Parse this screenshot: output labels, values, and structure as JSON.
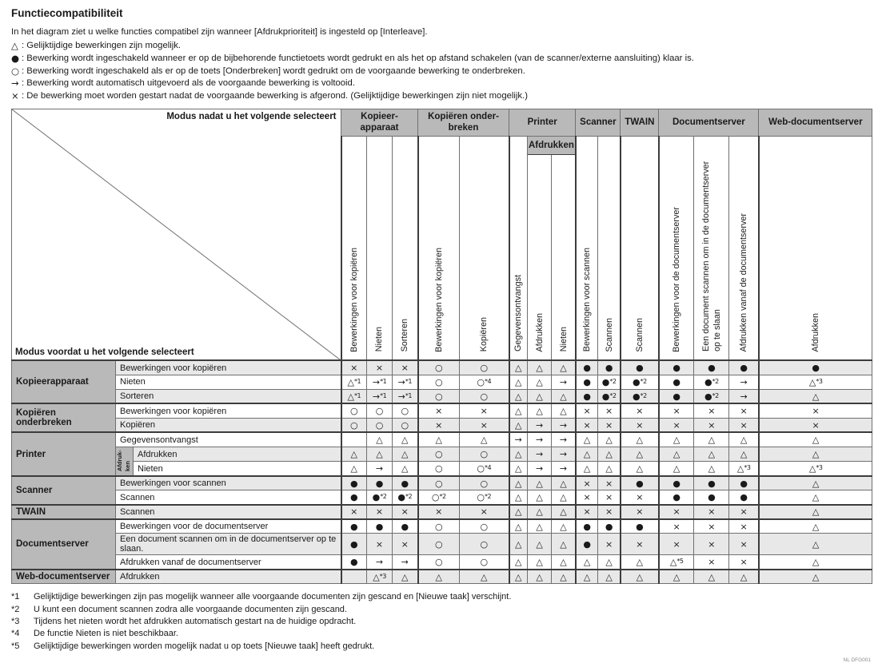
{
  "page_title": "Functiecompatibiliteit",
  "intro": "In het diagram ziet u welke functies compatibel zijn wanneer [Afdrukprioriteit] is ingesteld op [Interleave].",
  "legend": [
    {
      "symbol": "△",
      "text": " : Gelijktijdige bewerkingen zijn mogelijk."
    },
    {
      "symbol": "●",
      "text": " : Bewerking wordt ingeschakeld wanneer er op de bijbehorende functietoets wordt gedrukt en als het op afstand schakelen (van de scanner/externe aansluiting) klaar is."
    },
    {
      "symbol": "○",
      "text": " : Bewerking wordt ingeschakeld als er op de toets [Onderbreken] wordt gedrukt om de voorgaande bewerking te onderbreken."
    },
    {
      "symbol": "→",
      "text": ": Bewerking wordt automatisch uitgevoerd als de voorgaande bewerking is voltooid."
    },
    {
      "symbol": "×",
      "text": " : De bewerking moet worden gestart nadat de voorgaande bewerking is afgerond. (Gelijktijdige bewerkingen zijn niet mogelijk.)"
    }
  ],
  "table": {
    "corner": {
      "top": "Modus nadat u het volgende selecteert",
      "bottom": "Modus voordat u het volgende selecteert"
    },
    "col_groups": [
      {
        "label": "Kopieer-\napparaat",
        "span": 3
      },
      {
        "label": "Kopiëren onder-\nbreken",
        "span": 2
      },
      {
        "label": "Printer",
        "span": 3
      },
      {
        "label": "Scanner",
        "span": 2
      },
      {
        "label": "TWAIN",
        "span": 1
      },
      {
        "label": "Documentserver",
        "span": 3
      },
      {
        "label": "Web-documentserver",
        "span": 1
      }
    ],
    "printer_subheader": "Afdrukken",
    "columns": [
      "Bewerkingen voor kopiëren",
      "Nieten",
      "Sorteren",
      "Bewerkingen voor kopiëren",
      "Kopiëren",
      "Gegevensontvangst",
      "Afdrukken",
      "Nieten",
      "Bewerkingen voor scannen",
      "Scannen",
      "Scannen",
      "Bewerkingen voor de documentserver",
      "Een document scannen om in de documentserver op te slaan",
      "Afdrukken vanaf de documentserver",
      "Afdrukken"
    ],
    "row_groups": [
      {
        "label": "Kopieerapparaat",
        "rows": [
          {
            "label": "Bewerkingen voor kopiëren",
            "cells": [
              "×",
              "×",
              "×",
              "○",
              "○",
              "△",
              "△",
              "△",
              "●",
              "●",
              "●",
              "●",
              "●",
              "●",
              "●"
            ]
          },
          {
            "label": "Nieten",
            "cells": [
              "△*1",
              "→*1",
              "→*1",
              "○",
              "○*4",
              "△",
              "△",
              "→",
              "●",
              "●*2",
              "●*2",
              "●",
              "●*2",
              "→",
              "△*3"
            ]
          },
          {
            "label": "Sorteren",
            "cells": [
              "△*1",
              "→*1",
              "→*1",
              "○",
              "○",
              "△",
              "△",
              "△",
              "●",
              "●*2",
              "●*2",
              "●",
              "●*2",
              "→",
              "△"
            ]
          }
        ]
      },
      {
        "label": "Kopiëren onderbreken",
        "rows": [
          {
            "label": "Bewerkingen voor kopiëren",
            "cells": [
              "○",
              "○",
              "○",
              "×",
              "×",
              "△",
              "△",
              "△",
              "×",
              "×",
              "×",
              "×",
              "×",
              "×",
              "×"
            ]
          },
          {
            "label": "Kopiëren",
            "cells": [
              "○",
              "○",
              "○",
              "×",
              "×",
              "△",
              "→",
              "→",
              "×",
              "×",
              "×",
              "×",
              "×",
              "×",
              "×"
            ]
          }
        ]
      },
      {
        "label": "Printer",
        "rows": [
          {
            "label": "Gegevensontvangst",
            "cells": [
              "",
              "△",
              "△",
              "△",
              "△",
              "→",
              "→",
              "→",
              "△",
              "△",
              "△",
              "△",
              "△",
              "△",
              "△"
            ]
          },
          {
            "label": "Afdrukken",
            "sub_group": "Afdruk-ken",
            "sub_span": 2,
            "cells": [
              "△",
              "△",
              "△",
              "○",
              "○",
              "△",
              "→",
              "→",
              "△",
              "△",
              "△",
              "△",
              "△",
              "△",
              "△"
            ]
          },
          {
            "label": "Nieten",
            "in_sub": true,
            "cells": [
              "△",
              "→",
              "△",
              "○",
              "○*4",
              "△",
              "→",
              "→",
              "△",
              "△",
              "△",
              "△",
              "△",
              "△*3",
              "△*3"
            ]
          }
        ]
      },
      {
        "label": "Scanner",
        "rows": [
          {
            "label": "Bewerkingen voor scannen",
            "cells": [
              "●",
              "●",
              "●",
              "○",
              "○",
              "△",
              "△",
              "△",
              "×",
              "×",
              "●",
              "●",
              "●",
              "●",
              "△"
            ]
          },
          {
            "label": "Scannen",
            "cells": [
              "●",
              "●*2",
              "●*2",
              "○*2",
              "○*2",
              "△",
              "△",
              "△",
              "×",
              "×",
              "×",
              "●",
              "●",
              "●",
              "△"
            ]
          }
        ]
      },
      {
        "label": "TWAIN",
        "rows": [
          {
            "label": "Scannen",
            "cells": [
              "×",
              "×",
              "×",
              "×",
              "×",
              "△",
              "△",
              "△",
              "×",
              "×",
              "×",
              "×",
              "×",
              "×",
              "△"
            ]
          }
        ]
      },
      {
        "label": "Documentserver",
        "rows": [
          {
            "label": "Bewerkingen voor de documentserver",
            "cells": [
              "●",
              "●",
              "●",
              "○",
              "○",
              "△",
              "△",
              "△",
              "●",
              "●",
              "●",
              "×",
              "×",
              "×",
              "△"
            ]
          },
          {
            "label": "Een document scannen om in de documentserver op te slaan.",
            "cells": [
              "●",
              "×",
              "×",
              "○",
              "○",
              "△",
              "△",
              "△",
              "●",
              "×",
              "×",
              "×",
              "×",
              "×",
              "△"
            ]
          },
          {
            "label": "Afdrukken vanaf de documentserver",
            "cells": [
              "●",
              "→",
              "→",
              "○",
              "○",
              "△",
              "△",
              "△",
              "△",
              "△",
              "△",
              "△*5",
              "×",
              "×",
              "△"
            ]
          }
        ]
      },
      {
        "label": "Web-documentserver",
        "rows": [
          {
            "label": "Afdrukken",
            "cells": [
              "",
              "△*3",
              "△",
              "△",
              "△",
              "△",
              "△",
              "△",
              "△",
              "△",
              "△",
              "△",
              "△",
              "△",
              "△"
            ]
          }
        ]
      }
    ]
  },
  "footnotes": [
    {
      "marker": "*1",
      "text": "Gelijktijdige bewerkingen zijn pas mogelijk wanneer alle voorgaande documenten zijn gescand en [Nieuwe taak] verschijnt."
    },
    {
      "marker": "*2",
      "text": "U kunt een document scannen zodra alle voorgaande documenten zijn gescand."
    },
    {
      "marker": "*3",
      "text": "Tijdens het nieten wordt het afdrukken automatisch gestart na de huidige opdracht."
    },
    {
      "marker": "*4",
      "text": "De functie Nieten is niet beschikbaar."
    },
    {
      "marker": "*5",
      "text": "Gelijktijdige bewerkingen worden mogelijk nadat u op toets [Nieuwe taak] heeft gedrukt."
    }
  ],
  "figure_code": "NL DFG001"
}
